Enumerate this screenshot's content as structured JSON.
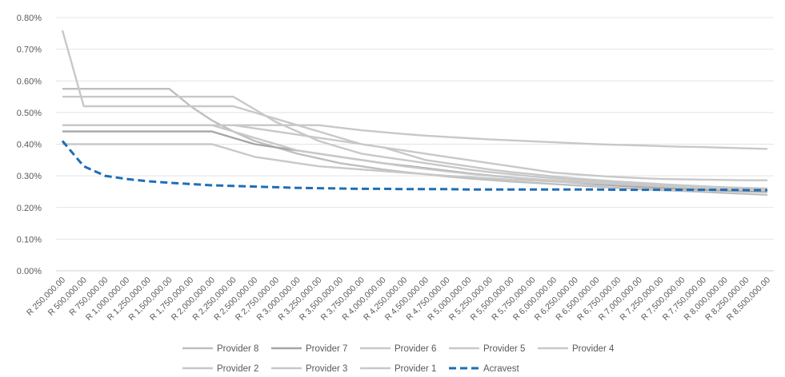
{
  "chart_data": {
    "type": "line",
    "title": "",
    "xlabel": "",
    "ylabel": "",
    "ylim": [
      0,
      0.008
    ],
    "grid": "horizontal",
    "legend_position": "bottom",
    "y_ticks": [
      "0.00%",
      "0.10%",
      "0.20%",
      "0.30%",
      "0.40%",
      "0.50%",
      "0.60%",
      "0.70%",
      "0.80%"
    ],
    "categories": [
      "R 250,000.00",
      "R 500,000.00",
      "R 750,000.00",
      "R 1,000,000.00",
      "R 1,250,000.00",
      "R 1,500,000.00",
      "R 1,750,000.00",
      "R 2,000,000.00",
      "R 2,250,000.00",
      "R 2,500,000.00",
      "R 2,750,000.00",
      "R 3,000,000.00",
      "R 3,250,000.00",
      "R 3,500,000.00",
      "R 3,750,000.00",
      "R 4,000,000.00",
      "R 4,250,000.00",
      "R 4,500,000.00",
      "R 4,750,000.00",
      "R 5,000,000.00",
      "R 5,250,000.00",
      "R 5,500,000.00",
      "R 5,750,000.00",
      "R 6,000,000.00",
      "R 6,250,000.00",
      "R 6,500,000.00",
      "R 6,750,000.00",
      "R 7,000,000.00",
      "R 7,250,000.00",
      "R 7,500,000.00",
      "R 7,750,000.00",
      "R 8,000,000.00",
      "R 8,250,000.00",
      "R 8,500,000.00"
    ],
    "series": [
      {
        "name": "Provider 8",
        "color": "#bfbfbf",
        "dashed": false,
        "values": [
          0.00575,
          0.00575,
          0.00575,
          0.00575,
          0.00575,
          0.00575,
          0.0052,
          0.00475,
          0.0044,
          0.0041,
          0.0039,
          0.0037,
          0.00355,
          0.0034,
          0.0033,
          0.0032,
          0.00312,
          0.00305,
          0.00298,
          0.00292,
          0.00287,
          0.00282,
          0.00278,
          0.00274,
          0.0027,
          0.00266,
          0.00262,
          0.00258,
          0.00255,
          0.00252,
          0.00249,
          0.00246,
          0.00243,
          0.0024
        ]
      },
      {
        "name": "Provider 7",
        "color": "#a6a6a6",
        "dashed": false,
        "values": [
          0.0044,
          0.0044,
          0.0044,
          0.0044,
          0.0044,
          0.0044,
          0.0044,
          0.0044,
          0.0042,
          0.004,
          0.0039,
          0.0038,
          0.0037,
          0.0036,
          0.0035,
          0.0034,
          0.00332,
          0.00324,
          0.00316,
          0.00308,
          0.00301,
          0.00295,
          0.00289,
          0.00283,
          0.00278,
          0.00273,
          0.00269,
          0.00265,
          0.00262,
          0.00259,
          0.00256,
          0.00253,
          0.00251,
          0.00249
        ]
      },
      {
        "name": "Provider 6",
        "color": "#c8c8c8",
        "dashed": false,
        "values": [
          0.0046,
          0.0046,
          0.0046,
          0.0046,
          0.0046,
          0.0046,
          0.0046,
          0.0046,
          0.0046,
          0.0046,
          0.0046,
          0.0046,
          0.0046,
          0.00452,
          0.00444,
          0.00438,
          0.00432,
          0.00427,
          0.00423,
          0.00419,
          0.00415,
          0.00412,
          0.00409,
          0.00406,
          0.00403,
          0.004,
          0.00398,
          0.00396,
          0.00394,
          0.00392,
          0.00391,
          0.00389,
          0.00387,
          0.00385
        ]
      },
      {
        "name": "Provider 5",
        "color": "#c8c8c8",
        "dashed": false,
        "values": [
          0.0055,
          0.0055,
          0.0055,
          0.0055,
          0.0055,
          0.0055,
          0.0055,
          0.0055,
          0.0055,
          0.0051,
          0.0047,
          0.0044,
          0.0041,
          0.0039,
          0.0037,
          0.0036,
          0.0035,
          0.0034,
          0.0033,
          0.0032,
          0.00312,
          0.00305,
          0.00298,
          0.00292,
          0.00287,
          0.00282,
          0.00278,
          0.00274,
          0.0027,
          0.00267,
          0.00264,
          0.00261,
          0.00258,
          0.00255
        ]
      },
      {
        "name": "Provider 4",
        "color": "#c8c8c8",
        "dashed": false,
        "values": [
          0.0076,
          0.0052,
          0.0052,
          0.0052,
          0.0052,
          0.0052,
          0.0052,
          0.0052,
          0.0052,
          0.005,
          0.0048,
          0.0046,
          0.0044,
          0.0042,
          0.004,
          0.0039,
          0.0037,
          0.0035,
          0.0034,
          0.0033,
          0.0032,
          0.00312,
          0.00305,
          0.00298,
          0.00292,
          0.00287,
          0.00282,
          0.00278,
          0.00274,
          0.0027,
          0.00267,
          0.00264,
          0.00261,
          0.00258
        ]
      },
      {
        "name": "Provider 2",
        "color": "#c8c8c8",
        "dashed": false,
        "values": [
          0.0046,
          0.0046,
          0.0046,
          0.0046,
          0.0046,
          0.0046,
          0.0046,
          0.0046,
          0.0046,
          0.0045,
          0.0044,
          0.0043,
          0.0042,
          0.0041,
          0.004,
          0.0039,
          0.0038,
          0.0037,
          0.0036,
          0.0035,
          0.0034,
          0.0033,
          0.0032,
          0.0031,
          0.00305,
          0.003,
          0.00296,
          0.00293,
          0.0029,
          0.00289,
          0.00288,
          0.00287,
          0.00286,
          0.00286
        ]
      },
      {
        "name": "Provider 3",
        "color": "#c8c8c8",
        "dashed": false,
        "values": [
          0.004,
          0.004,
          0.004,
          0.004,
          0.004,
          0.004,
          0.004,
          0.004,
          0.0038,
          0.0036,
          0.0035,
          0.0034,
          0.0033,
          0.00325,
          0.0032,
          0.00315,
          0.0031,
          0.00305,
          0.003,
          0.00296,
          0.00292,
          0.00288,
          0.00285,
          0.00282,
          0.00279,
          0.00276,
          0.00274,
          0.00272,
          0.0027,
          0.00268,
          0.00266,
          0.00264,
          0.00262,
          0.0026
        ]
      },
      {
        "name": "Provider 1",
        "color": "#c8c8c8",
        "dashed": false,
        "values": [
          0.0046,
          0.0046,
          0.0046,
          0.0046,
          0.0046,
          0.0046,
          0.0046,
          0.0046,
          0.0044,
          0.0042,
          0.004,
          0.0038,
          0.0037,
          0.0036,
          0.0035,
          0.0034,
          0.0033,
          0.00322,
          0.00314,
          0.00307,
          0.003,
          0.00295,
          0.0029,
          0.00285,
          0.00281,
          0.00277,
          0.00273,
          0.0027,
          0.00267,
          0.00264,
          0.00261,
          0.00258,
          0.00256,
          0.00254
        ]
      },
      {
        "name": "Acravest",
        "color": "#1f6eb5",
        "dashed": true,
        "values": [
          0.0041,
          0.0033,
          0.003,
          0.0029,
          0.00283,
          0.00278,
          0.00274,
          0.0027,
          0.00268,
          0.00266,
          0.00264,
          0.00262,
          0.00261,
          0.0026,
          0.00259,
          0.00259,
          0.00258,
          0.00258,
          0.00258,
          0.00257,
          0.00257,
          0.00257,
          0.00257,
          0.00257,
          0.00257,
          0.00257,
          0.00256,
          0.00256,
          0.00256,
          0.00256,
          0.00256,
          0.00256,
          0.00255,
          0.00255
        ]
      }
    ],
    "legend_rows": [
      [
        "Provider 8",
        "Provider 7",
        "Provider 6",
        "Provider 5",
        "Provider 4"
      ],
      [
        "Provider 2",
        "Provider 3",
        "Provider 1",
        "Acravest"
      ]
    ]
  }
}
